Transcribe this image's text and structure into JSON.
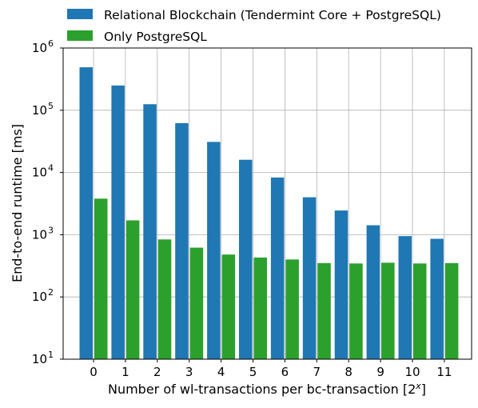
{
  "chart_data": {
    "type": "bar",
    "title": "",
    "xlabel": "Number of wl-transactions per bc-transaction [2^x]",
    "xlabel_text": "Number of wl-transactions per bc-transaction [2",
    "xlabel_sup": "x",
    "xlabel_close": "]",
    "ylabel": "End-to-end runtime [ms]",
    "yscale": "log",
    "ylim": [
      10,
      1000000
    ],
    "yticks": [
      {
        "value": 10,
        "base": "10",
        "exp": "1"
      },
      {
        "value": 100,
        "base": "10",
        "exp": "2"
      },
      {
        "value": 1000,
        "base": "10",
        "exp": "3"
      },
      {
        "value": 10000,
        "base": "10",
        "exp": "4"
      },
      {
        "value": 100000,
        "base": "10",
        "exp": "5"
      },
      {
        "value": 1000000,
        "base": "10",
        "exp": "6"
      }
    ],
    "categories": [
      "0",
      "1",
      "2",
      "3",
      "4",
      "5",
      "6",
      "7",
      "8",
      "9",
      "10",
      "11"
    ],
    "grid": true,
    "legend_position": "top",
    "series": [
      {
        "name": "Relational Blockchain (Tendermint Core + PostgreSQL)",
        "color": "#1f77b4",
        "values": [
          490000,
          250000,
          125000,
          62000,
          31000,
          16000,
          8300,
          4000,
          2450,
          1420,
          950,
          860
        ]
      },
      {
        "name": "Only PostgreSQL",
        "color": "#2ca02c",
        "values": [
          3800,
          1700,
          840,
          620,
          480,
          430,
          400,
          350,
          345,
          355,
          345,
          350
        ]
      }
    ]
  }
}
